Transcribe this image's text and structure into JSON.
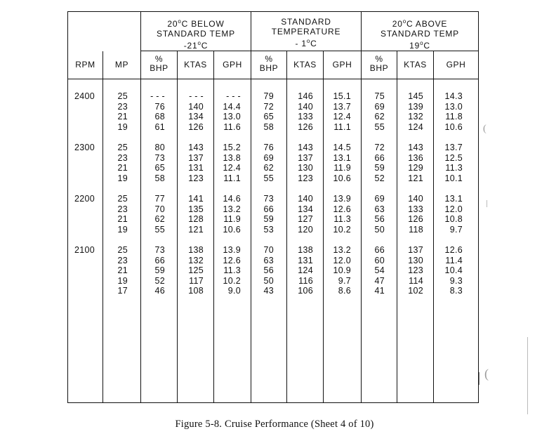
{
  "header": {
    "below_title": "20°C BELOW",
    "below_sub": "STANDARD TEMP",
    "below_temp": "-21°C",
    "std_title": "STANDARD",
    "std_sub": "TEMPERATURE",
    "std_temp": "- 1°C",
    "above_title": "20°C ABOVE",
    "above_sub": "STANDARD TEMP",
    "above_temp": "19°C"
  },
  "columns": {
    "rpm": "RPM",
    "mp": "MP",
    "pct": "%",
    "bhp": "BHP",
    "ktas": "KTAS",
    "gph": "GPH"
  },
  "rows": [
    {
      "rpm": "2400",
      "mp": [
        "25",
        "23",
        "21",
        "19"
      ],
      "below": {
        "bhp": [
          "- - -",
          "76",
          "68",
          "61"
        ],
        "ktas": [
          "- - -",
          "140",
          "134",
          "126"
        ],
        "gph": [
          "- - -",
          "14.4",
          "13.0",
          "11.6"
        ]
      },
      "std": {
        "bhp": [
          "79",
          "72",
          "65",
          "58"
        ],
        "ktas": [
          "146",
          "140",
          "133",
          "126"
        ],
        "gph": [
          "15.1",
          "13.7",
          "12.4",
          "11.1"
        ]
      },
      "above": {
        "bhp": [
          "75",
          "69",
          "62",
          "55"
        ],
        "ktas": [
          "145",
          "139",
          "132",
          "124"
        ],
        "gph": [
          "14.3",
          "13.0",
          "11.8",
          "10.6"
        ]
      }
    },
    {
      "rpm": "2300",
      "mp": [
        "25",
        "23",
        "21",
        "19"
      ],
      "below": {
        "bhp": [
          "80",
          "73",
          "65",
          "58"
        ],
        "ktas": [
          "143",
          "137",
          "131",
          "123"
        ],
        "gph": [
          "15.2",
          "13.8",
          "12.4",
          "11.1"
        ]
      },
      "std": {
        "bhp": [
          "76",
          "69",
          "62",
          "55"
        ],
        "ktas": [
          "143",
          "137",
          "130",
          "123"
        ],
        "gph": [
          "14.5",
          "13.1",
          "11.9",
          "10.6"
        ]
      },
      "above": {
        "bhp": [
          "72",
          "66",
          "59",
          "52"
        ],
        "ktas": [
          "143",
          "136",
          "129",
          "121"
        ],
        "gph": [
          "13.7",
          "12.5",
          "11.3",
          "10.1"
        ]
      }
    },
    {
      "rpm": "2200",
      "mp": [
        "25",
        "23",
        "21",
        "19"
      ],
      "below": {
        "bhp": [
          "77",
          "70",
          "62",
          "55"
        ],
        "ktas": [
          "141",
          "135",
          "128",
          "121"
        ],
        "gph": [
          "14.6",
          "13.2",
          "11.9",
          "10.6"
        ]
      },
      "std": {
        "bhp": [
          "73",
          "66",
          "59",
          "53"
        ],
        "ktas": [
          "140",
          "134",
          "127",
          "120"
        ],
        "gph": [
          "13.9",
          "12.6",
          "11.3",
          "10.2"
        ]
      },
      "above": {
        "bhp": [
          "69",
          "63",
          "56",
          "50"
        ],
        "ktas": [
          "140",
          "133",
          "126",
          "118"
        ],
        "gph": [
          "13.1",
          "12.0",
          "10.8",
          "9.7"
        ]
      }
    },
    {
      "rpm": "2100",
      "mp": [
        "25",
        "23",
        "21",
        "19",
        "17"
      ],
      "below": {
        "bhp": [
          "73",
          "66",
          "59",
          "52",
          "46"
        ],
        "ktas": [
          "138",
          "132",
          "125",
          "117",
          "108"
        ],
        "gph": [
          "13.9",
          "12.6",
          "11.3",
          "10.2",
          "9.0"
        ]
      },
      "std": {
        "bhp": [
          "70",
          "63",
          "56",
          "50",
          "43"
        ],
        "ktas": [
          "138",
          "131",
          "124",
          "116",
          "106"
        ],
        "gph": [
          "13.2",
          "12.0",
          "10.9",
          "9.7",
          "8.6"
        ]
      },
      "above": {
        "bhp": [
          "66",
          "60",
          "54",
          "47",
          "41"
        ],
        "ktas": [
          "137",
          "130",
          "123",
          "114",
          "102"
        ],
        "gph": [
          "12.6",
          "11.4",
          "10.4",
          "9.3",
          "8.3"
        ]
      }
    }
  ],
  "caption": "Figure 5-8.  Cruise Performance (Sheet 4 of 10)"
}
